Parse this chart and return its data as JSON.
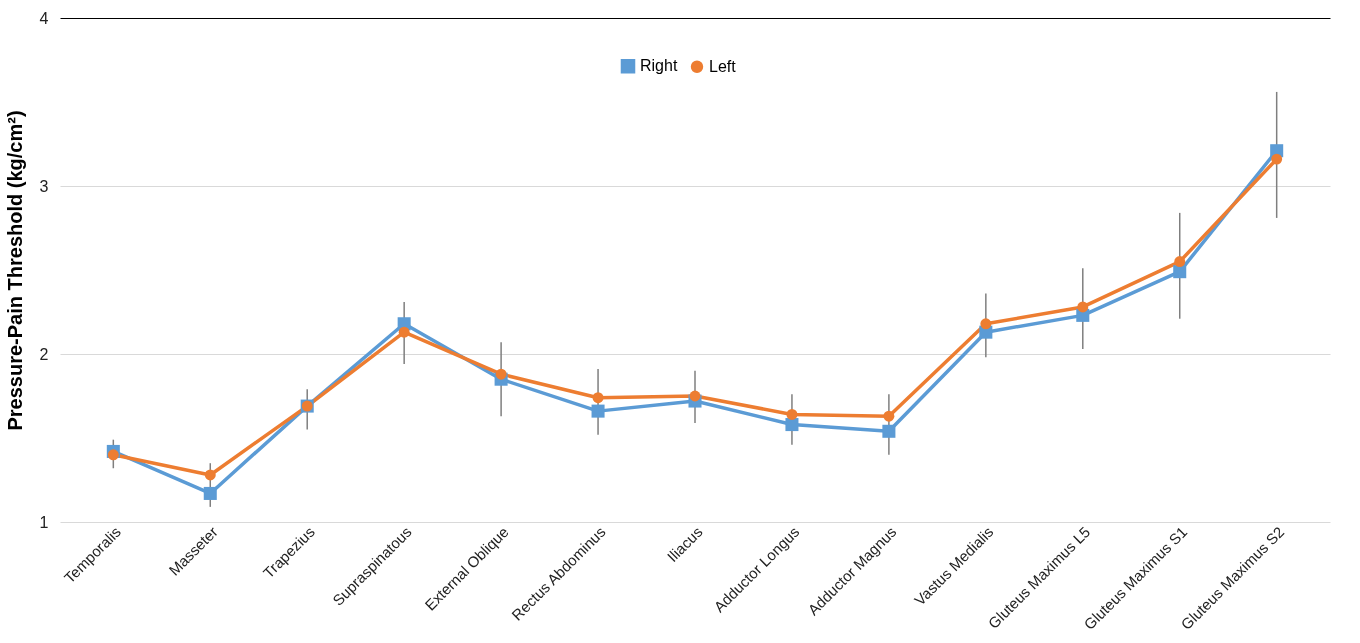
{
  "chart_data": {
    "type": "line",
    "ylabel": "Pressure-Pain Threshold (kg/cm²)",
    "categories": [
      "Temporalis",
      "Masseter",
      "Trapezius",
      "Supraspinatous",
      "External Oblique",
      "Rectus Abdominus",
      "Iliacus",
      "Adductor Longus",
      "Adductor Magnus",
      "Vastus Medialis",
      "Gluteus Maximus L5",
      "Gluteus Maximus S1",
      "Gluteus Maximus S2"
    ],
    "series": [
      {
        "name": "Right",
        "color": "#5b9bd5",
        "marker": "square",
        "values": [
          1.42,
          1.17,
          1.69,
          2.18,
          1.85,
          1.66,
          1.72,
          1.58,
          1.54,
          2.13,
          2.23,
          2.49,
          3.21
        ]
      },
      {
        "name": "Left",
        "color": "#ed7d31",
        "marker": "circle",
        "values": [
          1.4,
          1.28,
          1.69,
          2.13,
          1.88,
          1.74,
          1.75,
          1.64,
          1.63,
          2.18,
          2.28,
          2.55,
          3.16
        ],
        "errors": [
          [
            1.32,
            1.49
          ],
          [
            1.09,
            1.35
          ],
          [
            1.55,
            1.79
          ],
          [
            1.94,
            2.31
          ],
          [
            1.63,
            2.07
          ],
          [
            1.52,
            1.91
          ],
          [
            1.59,
            1.9
          ],
          [
            1.46,
            1.76
          ],
          [
            1.4,
            1.76
          ],
          [
            1.98,
            2.36
          ],
          [
            2.03,
            2.51
          ],
          [
            2.21,
            2.84
          ],
          [
            2.81,
            3.56
          ]
        ]
      }
    ],
    "ylim": [
      1,
      4
    ],
    "yticks": [
      1,
      2,
      3,
      4
    ],
    "grid": "y",
    "legend": "top",
    "line_style": "solid"
  }
}
